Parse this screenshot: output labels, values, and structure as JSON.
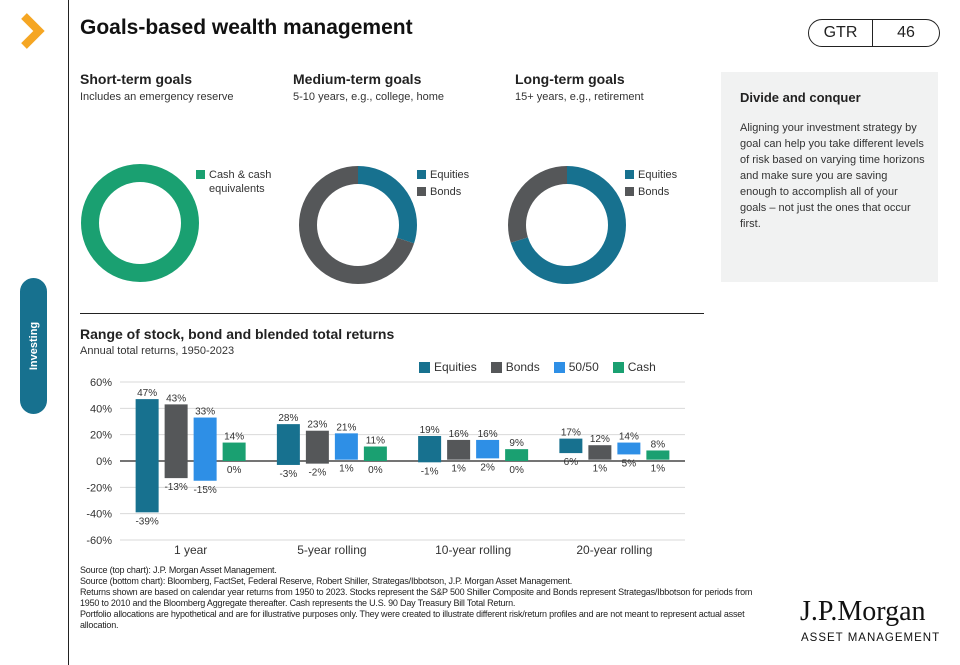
{
  "header": {
    "title": "Goals-based wealth management",
    "badge_label": "GTR",
    "page_number": "46"
  },
  "side_tab": {
    "label": "Investing"
  },
  "goals": [
    {
      "title": "Short-term goals",
      "subtitle": "Includes an emergency reserve",
      "legend": [
        {
          "label": "Cash & cash equivalents",
          "color": "#1aa071"
        }
      ],
      "slices": [
        100
      ]
    },
    {
      "title": "Medium-term goals",
      "subtitle": "5-10 years, e.g., college, home",
      "legend": [
        {
          "label": "Equities",
          "color": "#17718f"
        },
        {
          "label": "Bonds",
          "color": "#555759"
        }
      ],
      "slices": [
        30,
        70
      ]
    },
    {
      "title": "Long-term goals",
      "subtitle": "15+ years, e.g., retirement",
      "legend": [
        {
          "label": "Equities",
          "color": "#17718f"
        },
        {
          "label": "Bonds",
          "color": "#555759"
        }
      ],
      "slices": [
        70,
        30
      ]
    }
  ],
  "sidebar": {
    "heading": "Divide and conquer",
    "body": "Aligning your investment strategy by goal can help you take different levels of risk based on varying time horizons and make sure you are saving enough to accomplish all of your goals – not just the ones that occur first."
  },
  "chart_data": {
    "type": "bar",
    "title": "Range of stock, bond and blended total returns",
    "subtitle": "Annual total returns, 1950-2023",
    "categories": [
      "1 year",
      "5-year rolling",
      "10-year rolling",
      "20-year rolling"
    ],
    "ylim": [
      -60,
      60
    ],
    "yticks": [
      60,
      40,
      20,
      0,
      -20,
      -40,
      -60
    ],
    "ytick_labels": [
      "60%",
      "40%",
      "20%",
      "0%",
      "-20%",
      "-40%",
      "-60%"
    ],
    "grid": true,
    "legend_position": "top-right",
    "series": [
      {
        "name": "Equities",
        "color": "#17718f",
        "max": [
          47,
          28,
          19,
          17
        ],
        "min": [
          -39,
          -3,
          -1,
          6
        ],
        "max_labels": [
          "47%",
          "28%",
          "19%",
          "17%"
        ],
        "min_labels": [
          "-39%",
          "-3%",
          "-1%",
          "6%"
        ]
      },
      {
        "name": "Bonds",
        "color": "#555759",
        "max": [
          43,
          23,
          16,
          12
        ],
        "min": [
          -13,
          -2,
          1,
          1
        ],
        "max_labels": [
          "43%",
          "23%",
          "16%",
          "12%"
        ],
        "min_labels": [
          "-13%",
          "-2%",
          "1%",
          "1%"
        ]
      },
      {
        "name": "50/50",
        "color": "#2e8fe6",
        "max": [
          33,
          21,
          16,
          14
        ],
        "min": [
          -15,
          1,
          2,
          5
        ],
        "max_labels": [
          "33%",
          "21%",
          "16%",
          "14%"
        ],
        "min_labels": [
          "-15%",
          "1%",
          "2%",
          "5%"
        ]
      },
      {
        "name": "Cash",
        "color": "#1aa071",
        "max": [
          14,
          11,
          9,
          8
        ],
        "min": [
          0,
          0,
          0,
          1
        ],
        "max_labels": [
          "14%",
          "11%",
          "9%",
          "8%"
        ],
        "min_labels": [
          "0%",
          "0%",
          "0%",
          "1%"
        ]
      }
    ]
  },
  "sources": [
    "Source (top chart): J.P. Morgan Asset Management.",
    "Source (bottom chart): Bloomberg, FactSet, Federal Reserve, Robert Shiller, Strategas/Ibbotson, J.P. Morgan Asset Management.",
    "Returns shown are based on calendar year returns from 1950 to 2023. Stocks represent the S&P 500 Shiller Composite and Bonds represent Strategas/Ibbotson for periods from 1950 to 2010 and the Bloomberg Aggregate thereafter. Cash represents the U.S. 90 Day Treasury Bill Total Return.",
    "Portfolio allocations are hypothetical and are for illustrative purposes only. They were created to illustrate different risk/return profiles and are not meant to represent actual asset allocation."
  ],
  "logo": {
    "name": "J.P.Morgan",
    "sub": "ASSET MANAGEMENT"
  }
}
